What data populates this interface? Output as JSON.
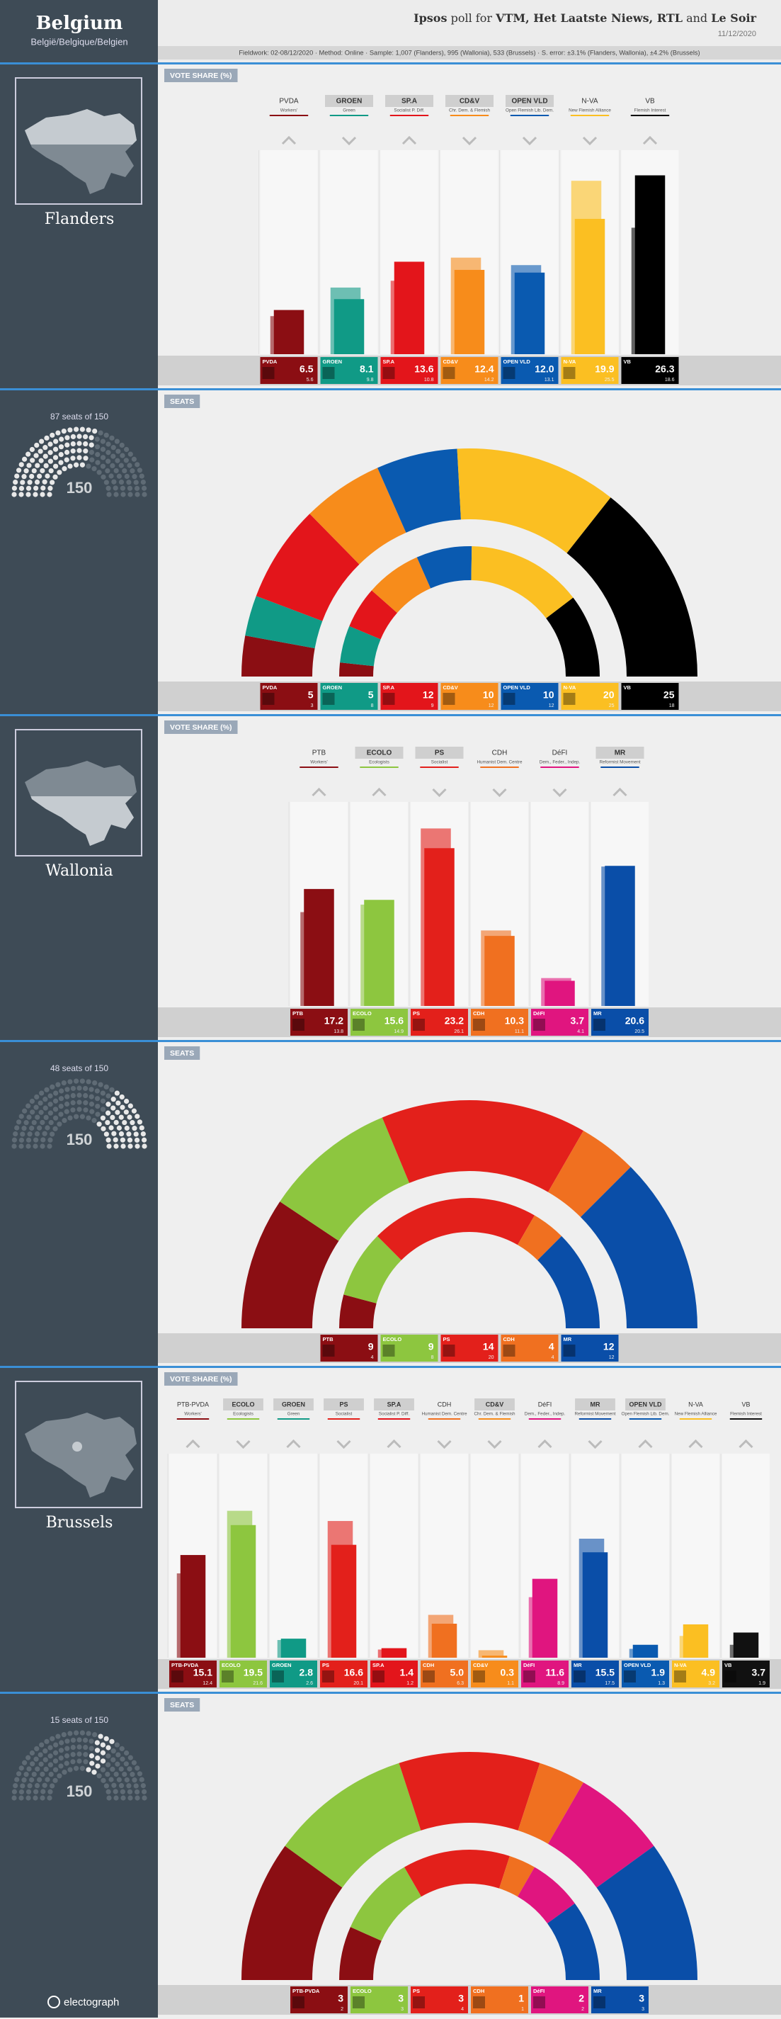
{
  "header": {
    "title": "Belgium",
    "subtitle": "België/Belgique/Belgien",
    "poll_title": [
      "Ipsos",
      " poll for ",
      "VTM, Het Laatste Niews, RTL",
      " and ",
      "Le Soir"
    ],
    "poll_title_bold": [
      true,
      false,
      true,
      false,
      true
    ],
    "date": "11/12/2020",
    "fieldwork": "Fieldwork: 02-08/12/2020 · Method: Online · Sample: 1,007 (Flanders), 995 (Wallonia), 533 (Brussels) · S. error: ±3.1% (Flanders, Wallonia), ±4.2% (Brussels)"
  },
  "regions": [
    {
      "name": "Flanders",
      "seats_caption": "87 seats of 150",
      "hemicycle": {
        "seats": 87,
        "total": 150
      }
    },
    {
      "name": "Wallonia",
      "seats_caption": "48 seats of 150",
      "hemicycle": {
        "seats": 48,
        "total": 150
      }
    },
    {
      "name": "Brussels",
      "seats_caption": "15 seats of 150",
      "hemicycle": {
        "seats": 15,
        "total": 150
      }
    }
  ],
  "chart_data": [
    {
      "type": "bar",
      "tab": "VOTE SHARE (%)",
      "categories": [
        "PVDA",
        "GROEN",
        "SP.A",
        "CD&V",
        "OPEN VLD",
        "N-VA",
        "VB"
      ],
      "descriptions": [
        "Workers'",
        "Green",
        "Socialist P. Diff.",
        "Chr. Dem. & Flemish",
        "Open Flemish Lib. Dem.",
        "New Flemish Alliance",
        "Flemish Interest"
      ],
      "colors": [
        "#8b0e13",
        "#109a86",
        "#e3151b",
        "#f78c1b",
        "#0a5ab0",
        "#fbbf22",
        "#000000"
      ],
      "government": [
        false,
        true,
        true,
        true,
        true,
        false,
        false
      ],
      "values": [
        6.5,
        8.1,
        13.6,
        12.4,
        12.0,
        19.9,
        26.3
      ],
      "value_labels": [
        "6.5",
        "8.1",
        "13.6",
        "12.4",
        "12.0",
        "19.9",
        "26.3"
      ],
      "previous": [
        5.6,
        9.8,
        10.8,
        14.2,
        13.1,
        25.5,
        18.6
      ],
      "ylim": [
        0,
        30
      ]
    },
    {
      "type": "hemicycle",
      "tab": "SEATS",
      "categories": [
        "PVDA",
        "GROEN",
        "SP.A",
        "CD&V",
        "OPEN VLD",
        "N-VA",
        "VB"
      ],
      "colors": [
        "#8b0e13",
        "#109a86",
        "#e3151b",
        "#f78c1b",
        "#0a5ab0",
        "#fbbf22",
        "#000000"
      ],
      "values": [
        5,
        5,
        12,
        10,
        10,
        20,
        25
      ],
      "previous": [
        3,
        8,
        9,
        12,
        12,
        25,
        18
      ]
    },
    {
      "type": "bar",
      "tab": "VOTE SHARE (%)",
      "categories": [
        "PTB",
        "ECOLO",
        "PS",
        "CDH",
        "DéFI",
        "MR"
      ],
      "descriptions": [
        "Workers'",
        "Ecologists",
        "Socialist",
        "Humanist Dem. Centre",
        "Dem., Feder., Indep.",
        "Reformist Movement"
      ],
      "colors": [
        "#8b0e13",
        "#8dc63f",
        "#e3201b",
        "#f07020",
        "#e0157f",
        "#0a4ea8"
      ],
      "government": [
        false,
        true,
        true,
        false,
        false,
        true
      ],
      "values": [
        17.2,
        15.6,
        23.2,
        10.3,
        3.7,
        20.6
      ],
      "value_labels": [
        "17.2",
        "15.6",
        "23.2",
        "10.3",
        "3.7",
        "20.6"
      ],
      "previous": [
        13.8,
        14.9,
        26.1,
        11.1,
        4.1,
        20.5
      ],
      "ylim": [
        0,
        30
      ]
    },
    {
      "type": "hemicycle",
      "tab": "SEATS",
      "categories": [
        "PTB",
        "ECOLO",
        "PS",
        "CDH",
        "MR"
      ],
      "colors": [
        "#8b0e13",
        "#8dc63f",
        "#e3201b",
        "#f07020",
        "#0a4ea8"
      ],
      "values": [
        9,
        9,
        14,
        4,
        12
      ],
      "previous": [
        4,
        8,
        20,
        4,
        12
      ]
    },
    {
      "type": "bar",
      "tab": "VOTE SHARE (%)",
      "categories": [
        "PTB-PVDA",
        "ECOLO",
        "GROEN",
        "PS",
        "SP.A",
        "CDH",
        "CD&V",
        "DéFI",
        "MR",
        "OPEN VLD",
        "N-VA",
        "VB"
      ],
      "descriptions": [
        "Workers'",
        "Ecologists",
        "Green",
        "Socialist",
        "Socialist P. Diff.",
        "Humanist Dem. Centre",
        "Chr. Dem. & Flemish",
        "Dem., Feder., Indep.",
        "Reformist Movement",
        "Open Flemish Lib. Dem.",
        "New Flemish Alliance",
        "Flemish Interest"
      ],
      "colors": [
        "#8b0e13",
        "#8dc63f",
        "#109a86",
        "#e3201b",
        "#e3151b",
        "#f07020",
        "#f78c1b",
        "#e0157f",
        "#0a4ea8",
        "#0a5ab0",
        "#fbbf22",
        "#111111"
      ],
      "government": [
        false,
        true,
        true,
        true,
        true,
        false,
        true,
        false,
        true,
        true,
        false,
        false
      ],
      "values": [
        15.1,
        19.5,
        2.8,
        16.6,
        1.4,
        5.0,
        0.3,
        11.6,
        15.5,
        1.9,
        4.9,
        3.7
      ],
      "value_labels": [
        "15.1",
        "19.5",
        "2.8",
        "16.6",
        "1.4",
        "5.0",
        "0.3",
        "11.6",
        "15.5",
        "1.9",
        "4.9",
        "3.7"
      ],
      "previous": [
        12.4,
        21.6,
        2.6,
        20.1,
        1.2,
        6.3,
        1.1,
        8.9,
        17.5,
        1.3,
        3.2,
        1.9
      ],
      "ylim": [
        0,
        30
      ]
    },
    {
      "type": "hemicycle",
      "tab": "SEATS",
      "categories": [
        "PTB-PVDA",
        "ECOLO",
        "PS",
        "CDH",
        "DéFI",
        "MR"
      ],
      "colors": [
        "#8b0e13",
        "#8dc63f",
        "#e3201b",
        "#f07020",
        "#e0157f",
        "#0a4ea8"
      ],
      "values": [
        3,
        3,
        3,
        1,
        2,
        3
      ],
      "previous": [
        2,
        3,
        4,
        1,
        2,
        3
      ]
    }
  ],
  "footer": {
    "brand": "electograph"
  }
}
